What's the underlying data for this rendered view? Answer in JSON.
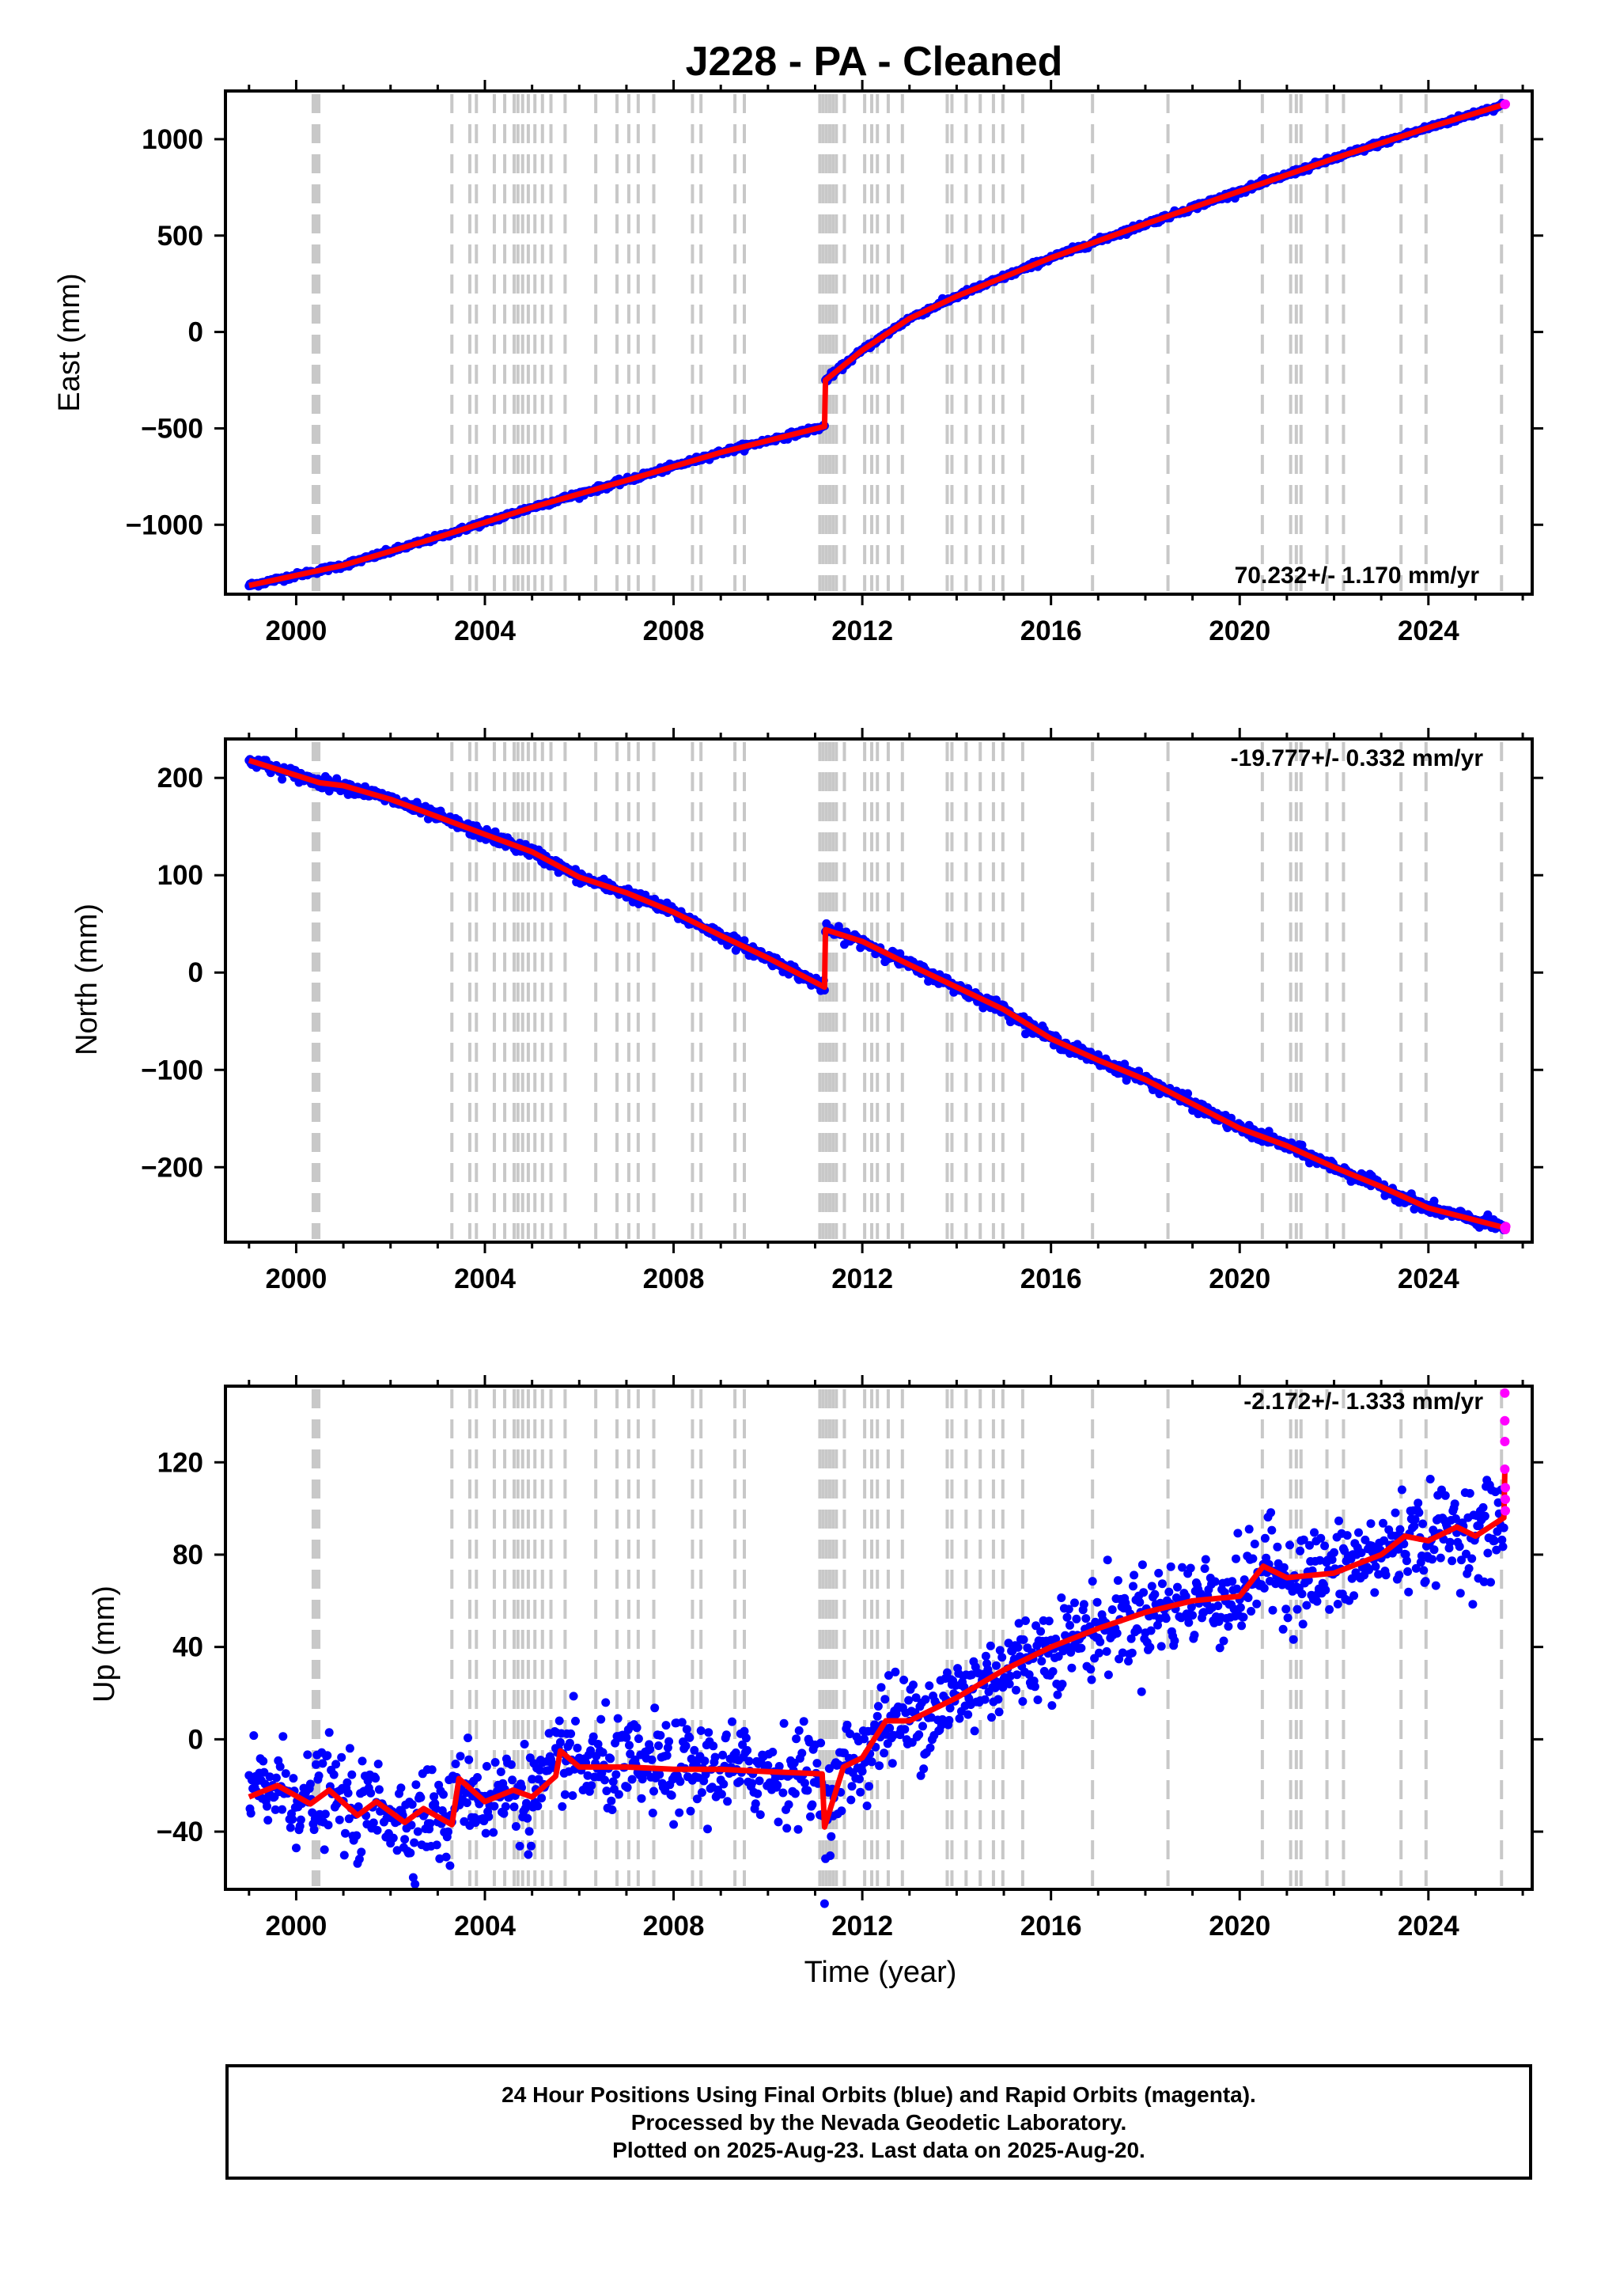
{
  "title": "J228  - PA - Cleaned",
  "x_axis_label": "Time (year)",
  "footer": {
    "line1": "24 Hour Positions Using Final Orbits (blue) and Rapid Orbits (magenta).",
    "line2": "Processed by the Nevada Geodetic Laboratory.",
    "line3": "Plotted on 2025-Aug-23. Last data on 2025-Aug-20."
  },
  "colors": {
    "final_orbits": "#0000ff",
    "rapid_orbits": "#ff00ff",
    "model": "#ff0000",
    "event_lines": "#c8c8c8"
  },
  "chart_data": [
    {
      "type": "scatter",
      "name": "East",
      "ylabel": "East (mm)",
      "rate_text": "70.232+/- 1.170 mm/yr",
      "xlim": [
        1998.5,
        2026.2
      ],
      "ylim": [
        -1360,
        1250
      ],
      "xticks": [
        2000,
        2004,
        2008,
        2012,
        2016,
        2020,
        2024
      ],
      "yticks": [
        -1000,
        -500,
        0,
        500,
        1000
      ],
      "ytick_labels": [
        "−1000",
        "−500",
        "0",
        "500",
        "1000"
      ],
      "points": [
        [
          1999.0,
          -1315
        ],
        [
          2001.0,
          -1210
        ],
        [
          2003.0,
          -1065
        ],
        [
          2005.0,
          -910
        ],
        [
          2007.0,
          -770
        ],
        [
          2009.0,
          -625
        ],
        [
          2011.2,
          -490
        ],
        [
          2011.22,
          -250
        ],
        [
          2012.0,
          -95
        ],
        [
          2013.0,
          70
        ],
        [
          2014.0,
          185
        ],
        [
          2016.0,
          385
        ],
        [
          2018.0,
          560
        ],
        [
          2020.0,
          730
        ],
        [
          2022.0,
          900
        ],
        [
          2024.0,
          1060
        ],
        [
          2025.6,
          1180
        ]
      ],
      "model": [
        [
          1999.0,
          -1315
        ],
        [
          2001.0,
          -1210
        ],
        [
          2003.0,
          -1065
        ],
        [
          2005.0,
          -910
        ],
        [
          2007.0,
          -770
        ],
        [
          2009.0,
          -625
        ],
        [
          2011.2,
          -490
        ],
        [
          2011.22,
          -250
        ],
        [
          2012.0,
          -95
        ],
        [
          2013.0,
          70
        ],
        [
          2014.0,
          185
        ],
        [
          2016.0,
          385
        ],
        [
          2018.0,
          560
        ],
        [
          2020.0,
          730
        ],
        [
          2022.0,
          900
        ],
        [
          2024.0,
          1060
        ],
        [
          2025.6,
          1180
        ]
      ],
      "rapid": [
        [
          2025.62,
          1180
        ],
        [
          2025.63,
          1182
        ]
      ],
      "scatter_mm": 7
    },
    {
      "type": "scatter",
      "name": "North",
      "ylabel": "North (mm)",
      "rate_text": "-19.777+/- 0.332 mm/yr",
      "xlim": [
        1998.5,
        2026.2
      ],
      "ylim": [
        -277,
        240
      ],
      "xticks": [
        2000,
        2004,
        2008,
        2012,
        2016,
        2020,
        2024
      ],
      "yticks": [
        -200,
        -100,
        0,
        100,
        200
      ],
      "ytick_labels": [
        "−200",
        "−100",
        "0",
        "100",
        "200"
      ],
      "points": [
        [
          1999.0,
          218
        ],
        [
          2000.5,
          195
        ],
        [
          2001.0,
          192
        ],
        [
          2002.0,
          178
        ],
        [
          2003.0,
          160
        ],
        [
          2004.0,
          142
        ],
        [
          2005.0,
          124
        ],
        [
          2006.0,
          98
        ],
        [
          2007.0,
          82
        ],
        [
          2008.0,
          62
        ],
        [
          2009.0,
          38
        ],
        [
          2010.0,
          15
        ],
        [
          2011.2,
          -15
        ],
        [
          2011.22,
          44
        ],
        [
          2012.0,
          32
        ],
        [
          2013.0,
          8
        ],
        [
          2014.0,
          -15
        ],
        [
          2015.0,
          -38
        ],
        [
          2016.0,
          -68
        ],
        [
          2017.0,
          -90
        ],
        [
          2018.0,
          -110
        ],
        [
          2019.0,
          -135
        ],
        [
          2020.0,
          -160
        ],
        [
          2021.0,
          -178
        ],
        [
          2022.0,
          -200
        ],
        [
          2023.0,
          -220
        ],
        [
          2024.0,
          -242
        ],
        [
          2025.6,
          -262
        ]
      ],
      "model": [
        [
          1999.0,
          218
        ],
        [
          2000.5,
          195
        ],
        [
          2001.0,
          192
        ],
        [
          2002.0,
          178
        ],
        [
          2003.0,
          160
        ],
        [
          2004.0,
          142
        ],
        [
          2005.0,
          124
        ],
        [
          2006.0,
          98
        ],
        [
          2007.0,
          82
        ],
        [
          2008.0,
          62
        ],
        [
          2009.0,
          38
        ],
        [
          2010.0,
          15
        ],
        [
          2011.2,
          -15
        ],
        [
          2011.22,
          44
        ],
        [
          2012.0,
          32
        ],
        [
          2013.0,
          8
        ],
        [
          2014.0,
          -15
        ],
        [
          2015.0,
          -38
        ],
        [
          2016.0,
          -68
        ],
        [
          2017.0,
          -90
        ],
        [
          2018.0,
          -110
        ],
        [
          2019.0,
          -135
        ],
        [
          2020.0,
          -160
        ],
        [
          2021.0,
          -178
        ],
        [
          2022.0,
          -200
        ],
        [
          2023.0,
          -220
        ],
        [
          2024.0,
          -242
        ],
        [
          2025.6,
          -262
        ]
      ],
      "rapid": [
        [
          2025.62,
          -262
        ],
        [
          2025.63,
          -264
        ],
        [
          2025.64,
          -261
        ]
      ],
      "scatter_mm": 3
    },
    {
      "type": "scatter",
      "name": "Up",
      "ylabel": "Up (mm)",
      "rate_text": "-2.172+/- 1.333 mm/yr",
      "xlim": [
        1998.5,
        2026.2
      ],
      "ylim": [
        -65,
        153
      ],
      "xticks": [
        2000,
        2004,
        2008,
        2012,
        2016,
        2020,
        2024
      ],
      "yticks": [
        -40,
        0,
        40,
        80,
        120
      ],
      "ytick_labels": [
        "−40",
        "0",
        "40",
        "80",
        "120"
      ],
      "points": [
        [
          1999.0,
          -25
        ],
        [
          1999.6,
          -20
        ],
        [
          2000.3,
          -28
        ],
        [
          2000.7,
          -22
        ],
        [
          2001.3,
          -33
        ],
        [
          2001.7,
          -27
        ],
        [
          2002.3,
          -36
        ],
        [
          2002.7,
          -30
        ],
        [
          2003.3,
          -37
        ],
        [
          2003.45,
          -17
        ],
        [
          2004.0,
          -27
        ],
        [
          2004.6,
          -22
        ],
        [
          2005.0,
          -25
        ],
        [
          2005.5,
          -16
        ],
        [
          2005.6,
          -5
        ],
        [
          2006.0,
          -12
        ],
        [
          2007.0,
          -12
        ],
        [
          2008.0,
          -13
        ],
        [
          2009.0,
          -13
        ],
        [
          2010.0,
          -14
        ],
        [
          2011.15,
          -15
        ],
        [
          2011.2,
          -38
        ],
        [
          2011.6,
          -12
        ],
        [
          2012.0,
          -8
        ],
        [
          2012.5,
          8
        ],
        [
          2013.0,
          8
        ],
        [
          2014.0,
          18
        ],
        [
          2015.0,
          30
        ],
        [
          2016.0,
          40
        ],
        [
          2017.0,
          48
        ],
        [
          2018.0,
          55
        ],
        [
          2019.0,
          60
        ],
        [
          2020.0,
          62
        ],
        [
          2020.5,
          75
        ],
        [
          2021.0,
          70
        ],
        [
          2022.0,
          72
        ],
        [
          2023.0,
          80
        ],
        [
          2023.5,
          88
        ],
        [
          2024.0,
          86
        ],
        [
          2024.6,
          92
        ],
        [
          2025.0,
          88
        ],
        [
          2025.6,
          96
        ]
      ],
      "model": [
        [
          1999.0,
          -25
        ],
        [
          1999.6,
          -20
        ],
        [
          2000.3,
          -28
        ],
        [
          2000.7,
          -22
        ],
        [
          2001.3,
          -33
        ],
        [
          2001.7,
          -27
        ],
        [
          2002.3,
          -36
        ],
        [
          2002.7,
          -30
        ],
        [
          2003.3,
          -37
        ],
        [
          2003.45,
          -17
        ],
        [
          2004.0,
          -27
        ],
        [
          2004.6,
          -22
        ],
        [
          2005.0,
          -25
        ],
        [
          2005.5,
          -16
        ],
        [
          2005.6,
          -5
        ],
        [
          2006.0,
          -12
        ],
        [
          2007.0,
          -12
        ],
        [
          2008.0,
          -13
        ],
        [
          2009.0,
          -13
        ],
        [
          2010.0,
          -14
        ],
        [
          2011.15,
          -15
        ],
        [
          2011.2,
          -38
        ],
        [
          2011.6,
          -12
        ],
        [
          2012.0,
          -8
        ],
        [
          2012.5,
          8
        ],
        [
          2013.0,
          8
        ],
        [
          2014.0,
          18
        ],
        [
          2015.0,
          30
        ],
        [
          2016.0,
          40
        ],
        [
          2017.0,
          48
        ],
        [
          2018.0,
          55
        ],
        [
          2019.0,
          60
        ],
        [
          2020.0,
          62
        ],
        [
          2020.5,
          75
        ],
        [
          2021.0,
          70
        ],
        [
          2022.0,
          72
        ],
        [
          2023.0,
          80
        ],
        [
          2023.5,
          88
        ],
        [
          2024.0,
          86
        ],
        [
          2024.6,
          92
        ],
        [
          2025.0,
          88
        ],
        [
          2025.6,
          96
        ],
        [
          2025.62,
          116
        ]
      ],
      "rapid": [
        [
          2025.62,
          150
        ],
        [
          2025.62,
          138
        ],
        [
          2025.62,
          129
        ],
        [
          2025.62,
          117
        ],
        [
          2025.63,
          109
        ],
        [
          2025.63,
          104
        ],
        [
          2025.63,
          99
        ]
      ],
      "scatter_mm": 10
    }
  ],
  "event_lines_year": [
    2000.36,
    2000.4,
    2000.44,
    2000.48,
    2003.3,
    2003.68,
    2003.82,
    2004.2,
    2004.42,
    2004.62,
    2004.7,
    2004.8,
    2004.92,
    2005.06,
    2005.22,
    2005.4,
    2005.7,
    2006.35,
    2006.8,
    2007.05,
    2007.25,
    2007.58,
    2008.4,
    2008.58,
    2009.3,
    2009.5,
    2011.1,
    2011.17,
    2011.24,
    2011.31,
    2011.38,
    2011.45,
    2011.62,
    2012.05,
    2012.2,
    2012.32,
    2012.55,
    2012.85,
    2013.8,
    2013.9,
    2014.2,
    2014.5,
    2014.78,
    2014.98,
    2015.4,
    2016.88,
    2018.48,
    2020.48,
    2021.08,
    2021.2,
    2021.3,
    2021.85,
    2022.2,
    2023.42,
    2023.95,
    2025.55
  ]
}
